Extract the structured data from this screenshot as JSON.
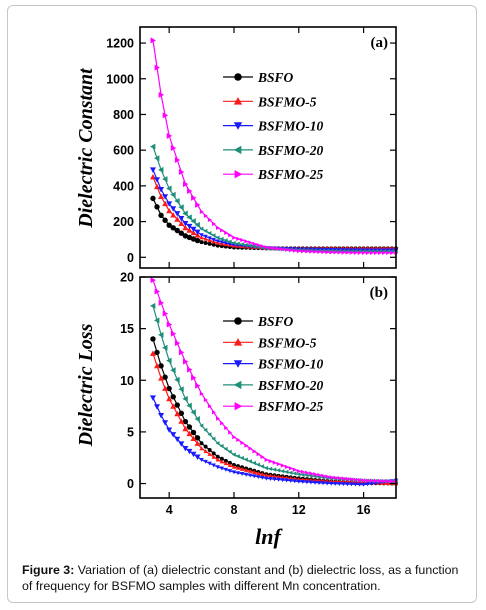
{
  "figure": {
    "caption_label": "Figure 3:",
    "caption_text": " Variation of (a) dielectric constant and (b) dielectric loss, as a function of frequency for BSFMO samples with different Mn concentration."
  },
  "colors": {
    "BSFO": "#000000",
    "BSFMO-5": "#ff1a1a",
    "BSFMO-10": "#1a1aff",
    "BSFMO-20": "#1f8f7a",
    "BSFMO-25": "#ff00ff"
  },
  "chart_data": [
    {
      "type": "scatter",
      "panel_label": "(a)",
      "ylabel": "Dielectric Constant",
      "xlabel": "",
      "xlim": [
        2.2,
        18
      ],
      "ylim": [
        -60,
        1290
      ],
      "yticks": [
        0,
        200,
        400,
        600,
        800,
        1000,
        1200
      ],
      "legend_position": "top-center",
      "series": [
        {
          "name": "BSFO",
          "marker": "circle",
          "x": [
            3.0,
            3.5,
            4.0,
            5.0,
            6.0,
            7.0,
            8.0,
            10.0,
            12.0,
            14.0,
            16.0,
            18.0
          ],
          "y": [
            330,
            235,
            180,
            120,
            85,
            65,
            55,
            50,
            50,
            50,
            50,
            50
          ]
        },
        {
          "name": "BSFMO-5",
          "marker": "triangle-up",
          "x": [
            3.0,
            3.5,
            4.0,
            5.0,
            6.0,
            7.0,
            8.0,
            10.0,
            12.0,
            14.0,
            16.0,
            18.0
          ],
          "y": [
            450,
            340,
            260,
            165,
            110,
            80,
            65,
            52,
            50,
            50,
            50,
            50
          ]
        },
        {
          "name": "BSFMO-10",
          "marker": "triangle-down",
          "x": [
            3.0,
            3.5,
            4.0,
            5.0,
            6.0,
            7.0,
            8.0,
            10.0,
            12.0,
            14.0,
            16.0,
            18.0
          ],
          "y": [
            490,
            380,
            300,
            190,
            125,
            90,
            70,
            52,
            45,
            42,
            40,
            40
          ]
        },
        {
          "name": "BSFMO-20",
          "marker": "triangle-left",
          "x": [
            3.0,
            3.5,
            4.0,
            5.0,
            6.0,
            7.0,
            8.0,
            10.0,
            12.0,
            14.0,
            16.0,
            18.0
          ],
          "y": [
            620,
            490,
            385,
            245,
            160,
            110,
            80,
            50,
            40,
            35,
            33,
            33
          ]
        },
        {
          "name": "BSFMO-25",
          "marker": "triangle-right",
          "x": [
            3.0,
            3.5,
            4.0,
            5.0,
            6.0,
            7.0,
            8.0,
            10.0,
            12.0,
            14.0,
            16.0,
            18.0
          ],
          "y": [
            1215,
            910,
            680,
            410,
            255,
            165,
            110,
            55,
            35,
            28,
            25,
            25
          ]
        }
      ]
    },
    {
      "type": "scatter",
      "panel_label": "(b)",
      "ylabel": "Dielectric Loss",
      "xlabel": "lnf",
      "xlim": [
        2.2,
        18
      ],
      "xticks": [
        4,
        8,
        12,
        16
      ],
      "ylim": [
        -1.4,
        20
      ],
      "yticks": [
        0,
        5,
        10,
        15,
        20
      ],
      "legend_position": "top-center",
      "series": [
        {
          "name": "BSFO",
          "marker": "circle",
          "x": [
            3.0,
            3.5,
            4.0,
            5.0,
            6.0,
            7.0,
            8.0,
            10.0,
            12.0,
            14.0,
            16.0,
            18.0
          ],
          "y": [
            14.0,
            11.4,
            9.2,
            6.0,
            3.9,
            2.6,
            1.8,
            0.9,
            0.5,
            0.2,
            0.05,
            0.0
          ]
        },
        {
          "name": "BSFMO-5",
          "marker": "triangle-up",
          "x": [
            3.0,
            3.5,
            4.0,
            5.0,
            6.0,
            7.0,
            8.0,
            10.0,
            12.0,
            14.0,
            16.0,
            18.0
          ],
          "y": [
            12.6,
            10.2,
            8.2,
            5.3,
            3.4,
            2.3,
            1.6,
            0.8,
            0.4,
            0.2,
            0.1,
            0.0
          ]
        },
        {
          "name": "BSFMO-10",
          "marker": "triangle-down",
          "x": [
            3.0,
            3.5,
            4.0,
            5.0,
            6.0,
            7.0,
            8.0,
            10.0,
            12.0,
            14.0,
            16.0,
            18.0
          ],
          "y": [
            8.3,
            6.6,
            5.2,
            3.4,
            2.3,
            1.6,
            1.1,
            0.5,
            0.2,
            0.0,
            -0.1,
            0.3
          ]
        },
        {
          "name": "BSFMO-20",
          "marker": "triangle-left",
          "x": [
            3.0,
            3.5,
            4.0,
            5.0,
            6.0,
            7.0,
            8.0,
            10.0,
            12.0,
            14.0,
            16.0,
            18.0
          ],
          "y": [
            17.2,
            14.4,
            11.9,
            8.2,
            5.6,
            3.9,
            2.8,
            1.5,
            0.9,
            0.5,
            0.3,
            0.2
          ]
        },
        {
          "name": "BSFMO-25",
          "marker": "triangle-right",
          "x": [
            3.0,
            3.5,
            4.0,
            5.0,
            6.0,
            7.0,
            8.0,
            10.0,
            12.0,
            14.0,
            16.0,
            18.0
          ],
          "y": [
            19.7,
            17.5,
            15.4,
            11.8,
            8.7,
            6.3,
            4.5,
            2.3,
            1.2,
            0.6,
            0.3,
            0.2
          ]
        }
      ]
    }
  ]
}
